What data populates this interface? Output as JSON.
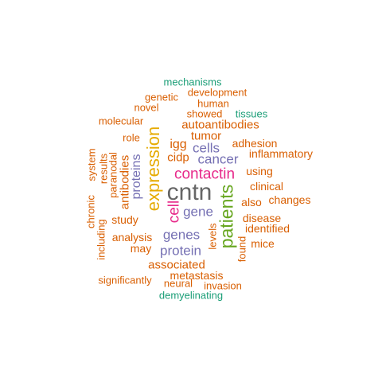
{
  "colors": {
    "orange": "#d95f02",
    "green": "#1b9e77",
    "purple": "#7570b3",
    "magenta": "#e7298a",
    "lime": "#66a61e",
    "gold": "#e6ab02",
    "gray": "#666666"
  },
  "words": [
    {
      "text": "mechanisms",
      "color": "green"
    },
    {
      "text": "development",
      "color": "orange"
    },
    {
      "text": "genetic",
      "color": "orange"
    },
    {
      "text": "human",
      "color": "orange"
    },
    {
      "text": "novel",
      "color": "orange"
    },
    {
      "text": "showed",
      "color": "orange"
    },
    {
      "text": "tissues",
      "color": "green"
    },
    {
      "text": "molecular",
      "color": "orange"
    },
    {
      "text": "autoantibodies",
      "color": "orange"
    },
    {
      "text": "expression",
      "color": "gold"
    },
    {
      "text": "tumor",
      "color": "orange"
    },
    {
      "text": "role",
      "color": "orange"
    },
    {
      "text": "igg",
      "color": "orange"
    },
    {
      "text": "cells",
      "color": "purple"
    },
    {
      "text": "adhesion",
      "color": "orange"
    },
    {
      "text": "system",
      "color": "orange"
    },
    {
      "text": "paranodal",
      "color": "orange"
    },
    {
      "text": "results",
      "color": "orange"
    },
    {
      "text": "cidp",
      "color": "orange"
    },
    {
      "text": "cancer",
      "color": "purple"
    },
    {
      "text": "inflammatory",
      "color": "orange"
    },
    {
      "text": "proteins",
      "color": "purple"
    },
    {
      "text": "antibodies",
      "color": "orange"
    },
    {
      "text": "contactin",
      "color": "magenta"
    },
    {
      "text": "using",
      "color": "orange"
    },
    {
      "text": "clinical",
      "color": "orange"
    },
    {
      "text": "cntn",
      "color": "gray"
    },
    {
      "text": "patients",
      "color": "lime"
    },
    {
      "text": "chronic",
      "color": "orange"
    },
    {
      "text": "cell",
      "color": "magenta"
    },
    {
      "text": "also",
      "color": "orange"
    },
    {
      "text": "changes",
      "color": "orange"
    },
    {
      "text": "including",
      "color": "orange"
    },
    {
      "text": "gene",
      "color": "purple"
    },
    {
      "text": "study",
      "color": "orange"
    },
    {
      "text": "disease",
      "color": "orange"
    },
    {
      "text": "identified",
      "color": "orange"
    },
    {
      "text": "analysis",
      "color": "orange"
    },
    {
      "text": "genes",
      "color": "purple"
    },
    {
      "text": "levels",
      "color": "orange"
    },
    {
      "text": "may",
      "color": "orange"
    },
    {
      "text": "protein",
      "color": "purple"
    },
    {
      "text": "mice",
      "color": "orange"
    },
    {
      "text": "found",
      "color": "orange"
    },
    {
      "text": "associated",
      "color": "orange"
    },
    {
      "text": "metastasis",
      "color": "orange"
    },
    {
      "text": "significantly",
      "color": "orange"
    },
    {
      "text": "neural",
      "color": "orange"
    },
    {
      "text": "invasion",
      "color": "orange"
    },
    {
      "text": "demyelinating",
      "color": "green"
    }
  ]
}
